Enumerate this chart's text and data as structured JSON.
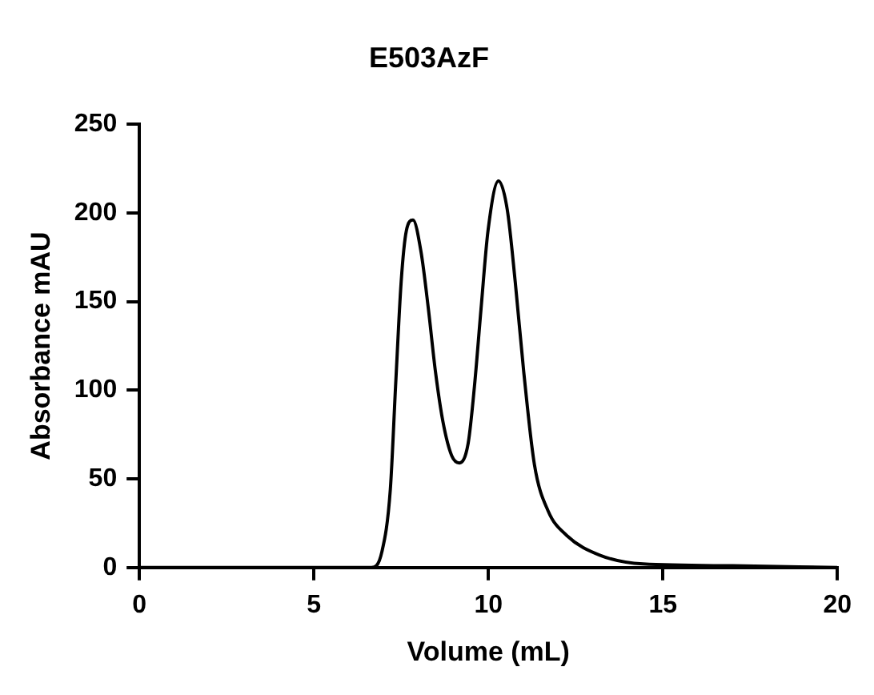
{
  "chart_data": {
    "type": "line",
    "title": "E503AzF",
    "xlabel": "Volume (mL)",
    "ylabel": "Absorbance mAU",
    "series": [
      {
        "color": "#000000",
        "x": [
          0,
          3,
          6.65,
          6.95,
          7.19,
          7.34,
          7.5,
          7.65,
          7.84,
          8.07,
          8.28,
          8.48,
          8.7,
          8.95,
          9.17,
          9.42,
          9.6,
          9.79,
          9.99,
          10.29,
          10.54,
          10.77,
          11.01,
          11.32,
          11.71,
          12.25,
          13.19,
          14.43,
          17,
          20
        ],
        "values": [
          0,
          0,
          0,
          9,
          44,
          102,
          161,
          190,
          196,
          178,
          146,
          111,
          82,
          63,
          59,
          70,
          102,
          146,
          190,
          218,
          202,
          161,
          111,
          58,
          32,
          18,
          7,
          2,
          1,
          0
        ]
      }
    ],
    "xlim": [
      0,
      20
    ],
    "xticks": [
      0,
      5,
      10,
      15,
      20
    ],
    "ylim": [
      0,
      250
    ],
    "yticks": [
      0,
      50,
      100,
      150,
      200,
      250
    ],
    "grid": false,
    "legend": false,
    "marker": "none",
    "line_style": "solid"
  }
}
